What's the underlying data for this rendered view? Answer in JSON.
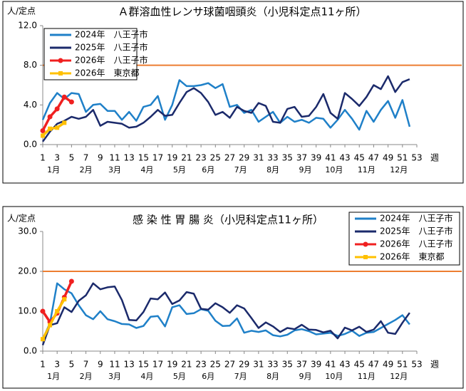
{
  "chart_data": [
    {
      "type": "line",
      "title": "Ａ群溶血性レンサ球菌咽頭炎（小児科定点11ヶ所）",
      "y_label": "人/定点",
      "x_label": "週",
      "x": [
        1,
        2,
        3,
        4,
        5,
        6,
        7,
        8,
        9,
        10,
        11,
        12,
        13,
        14,
        15,
        16,
        17,
        18,
        19,
        20,
        21,
        22,
        23,
        24,
        25,
        26,
        27,
        28,
        29,
        30,
        31,
        32,
        33,
        34,
        35,
        36,
        37,
        38,
        39,
        40,
        41,
        42,
        43,
        44,
        45,
        46,
        47,
        48,
        49,
        50,
        51,
        52
      ],
      "xlim": [
        1,
        53
      ],
      "xticks": [
        1,
        3,
        5,
        7,
        9,
        11,
        13,
        15,
        17,
        19,
        21,
        23,
        25,
        27,
        29,
        31,
        33,
        35,
        37,
        39,
        41,
        43,
        45,
        47,
        49,
        51,
        53
      ],
      "month_labels": [
        {
          "value": 2.5,
          "label": "1月"
        },
        {
          "value": 7,
          "label": "2月"
        },
        {
          "value": 11,
          "label": "3月"
        },
        {
          "value": 15.5,
          "label": "4月"
        },
        {
          "value": 20,
          "label": "5月"
        },
        {
          "value": 24,
          "label": "6月"
        },
        {
          "value": 28.5,
          "label": "7月"
        },
        {
          "value": 33,
          "label": "8月"
        },
        {
          "value": 37.5,
          "label": "9月"
        },
        {
          "value": 41.5,
          "label": "10月"
        },
        {
          "value": 46,
          "label": "11月"
        },
        {
          "value": 50.5,
          "label": "12月"
        }
      ],
      "ylim": [
        0,
        12
      ],
      "yticks": [
        {
          "value": 0,
          "label": "0.0"
        },
        {
          "value": 4,
          "label": "4.0"
        },
        {
          "value": 8,
          "label": "8.0"
        },
        {
          "value": 12,
          "label": "12.0"
        }
      ],
      "grid": false,
      "legend": "upper left",
      "reference_line": {
        "value": 8,
        "color": "#ed7d31"
      },
      "series": [
        {
          "name": "2024年　八王子市",
          "color": "#1f80c8",
          "values": [
            2.5,
            4.2,
            5.2,
            4.6,
            5.2,
            5.1,
            3.3,
            4.0,
            4.1,
            3.4,
            3.4,
            2.5,
            3.3,
            2.4,
            3.8,
            4.0,
            4.9,
            2.5,
            4.0,
            6.5,
            5.9,
            5.9,
            6.0,
            6.2,
            5.7,
            6.1,
            3.8,
            4.0,
            3.2,
            3.5,
            2.3,
            2.8,
            3.3,
            2.2,
            2.8,
            2.3,
            2.5,
            2.2,
            2.7,
            2.6,
            1.7,
            2.5,
            3.5,
            2.6,
            1.5,
            3.4,
            2.3,
            3.5,
            4.4,
            2.7,
            4.5,
            1.8
          ]
        },
        {
          "name": "2025年　八王子市",
          "color": "#1b2a6b",
          "values": [
            0.3,
            1.3,
            2.1,
            2.4,
            2.8,
            2.6,
            2.8,
            3.5,
            1.9,
            2.3,
            2.2,
            2.1,
            1.7,
            1.8,
            2.2,
            2.8,
            3.5,
            2.9,
            3.0,
            4.2,
            5.3,
            5.7,
            5.2,
            4.3,
            3.0,
            3.3,
            2.7,
            3.8,
            3.4,
            3.2,
            4.2,
            3.9,
            2.3,
            2.2,
            3.6,
            3.8,
            2.8,
            2.9,
            3.8,
            5.1,
            3.2,
            2.6,
            5.2,
            4.6,
            3.9,
            4.8,
            6.0,
            5.6,
            6.9,
            5.3,
            6.3,
            6.6
          ]
        },
        {
          "name": "2026年　八王子市",
          "color": "#f02020",
          "marker": "circle",
          "values": [
            1.4,
            2.8,
            3.6,
            4.8,
            4.3,
            null,
            null,
            null,
            null,
            null,
            null,
            null,
            null,
            null,
            null,
            null,
            null,
            null,
            null,
            null,
            null,
            null,
            null,
            null,
            null,
            null,
            null,
            null,
            null,
            null,
            null,
            null,
            null,
            null,
            null,
            null,
            null,
            null,
            null,
            null,
            null,
            null,
            null,
            null,
            null,
            null,
            null,
            null,
            null,
            null,
            null,
            null
          ]
        },
        {
          "name": "2026年　東京都",
          "color": "#ffc000",
          "marker": "square",
          "values": [
            0.9,
            1.6,
            1.7,
            2.2,
            null,
            null,
            null,
            null,
            null,
            null,
            null,
            null,
            null,
            null,
            null,
            null,
            null,
            null,
            null,
            null,
            null,
            null,
            null,
            null,
            null,
            null,
            null,
            null,
            null,
            null,
            null,
            null,
            null,
            null,
            null,
            null,
            null,
            null,
            null,
            null,
            null,
            null,
            null,
            null,
            null,
            null,
            null,
            null,
            null,
            null,
            null,
            null
          ]
        }
      ]
    },
    {
      "type": "line",
      "title": "感 染 性 胃 腸 炎（小児科定点11ヶ所）",
      "y_label": "人/定点",
      "x_label": "週",
      "x": [
        1,
        2,
        3,
        4,
        5,
        6,
        7,
        8,
        9,
        10,
        11,
        12,
        13,
        14,
        15,
        16,
        17,
        18,
        19,
        20,
        21,
        22,
        23,
        24,
        25,
        26,
        27,
        28,
        29,
        30,
        31,
        32,
        33,
        34,
        35,
        36,
        37,
        38,
        39,
        40,
        41,
        42,
        43,
        44,
        45,
        46,
        47,
        48,
        49,
        50,
        51,
        52
      ],
      "xlim": [
        1,
        53
      ],
      "xticks": [
        1,
        3,
        5,
        7,
        9,
        11,
        13,
        15,
        17,
        19,
        21,
        23,
        25,
        27,
        29,
        31,
        33,
        35,
        37,
        39,
        41,
        43,
        45,
        47,
        49,
        51,
        53
      ],
      "month_labels": [
        {
          "value": 2.5,
          "label": "1月"
        },
        {
          "value": 7,
          "label": "2月"
        },
        {
          "value": 11,
          "label": "3月"
        },
        {
          "value": 15.5,
          "label": "4月"
        },
        {
          "value": 20,
          "label": "5月"
        },
        {
          "value": 24,
          "label": "6月"
        },
        {
          "value": 28.5,
          "label": "7月"
        },
        {
          "value": 33,
          "label": "8月"
        },
        {
          "value": 37.5,
          "label": "9月"
        },
        {
          "value": 41.5,
          "label": "10月"
        },
        {
          "value": 46,
          "label": "11月"
        },
        {
          "value": 50.5,
          "label": "12月"
        }
      ],
      "ylim": [
        0,
        30
      ],
      "yticks": [
        {
          "value": 0,
          "label": "0.0"
        },
        {
          "value": 10,
          "label": "10.0"
        },
        {
          "value": 20,
          "label": "20.0"
        },
        {
          "value": 30,
          "label": "30.0"
        }
      ],
      "grid": false,
      "legend": "upper right",
      "reference_line": {
        "value": 20,
        "color": "#ed7d31"
      },
      "series": [
        {
          "name": "2024年　八王子市",
          "color": "#1f80c8",
          "values": [
            3,
            7,
            17,
            15.5,
            14.5,
            11.5,
            9,
            8,
            10,
            8,
            7.5,
            6.8,
            6.7,
            5.8,
            6.3,
            8.6,
            8.8,
            6.2,
            11,
            11.5,
            9.3,
            9.5,
            10.5,
            10.1,
            7.6,
            6.3,
            6.4,
            8.2,
            4.6,
            5.1,
            4.8,
            5.2,
            4.0,
            3.7,
            4.1,
            5.2,
            5.5,
            5.0,
            4.2,
            4.4,
            4.6,
            3.8,
            4.3,
            5.1,
            3.8,
            4.6,
            4.8,
            5.8,
            6.8,
            7.8,
            9.0,
            6.7
          ]
        },
        {
          "name": "2025年　八王子市",
          "color": "#1b2a6b",
          "values": [
            1.5,
            6.5,
            7,
            11,
            9.8,
            12.6,
            14,
            17,
            15.5,
            16,
            16.2,
            12.8,
            7.8,
            7.7,
            9.8,
            13.2,
            13,
            14.7,
            11.8,
            12.7,
            14.8,
            14.4,
            10.6,
            10.4,
            12,
            11,
            9.6,
            11.5,
            10.7,
            8.3,
            5.8,
            7.2,
            6.2,
            4.8,
            5.8,
            5.5,
            6.6,
            5.4,
            5.3,
            4.7,
            5.1,
            3.2,
            5.9,
            5.2,
            6.1,
            4.8,
            5.4,
            7.5,
            4.6,
            4.3,
            7.1,
            9.6
          ]
        },
        {
          "name": "2026年　八王子市",
          "color": "#f02020",
          "marker": "circle",
          "values": [
            10,
            7.3,
            9.5,
            13.5,
            17.5,
            null,
            null,
            null,
            null,
            null,
            null,
            null,
            null,
            null,
            null,
            null,
            null,
            null,
            null,
            null,
            null,
            null,
            null,
            null,
            null,
            null,
            null,
            null,
            null,
            null,
            null,
            null,
            null,
            null,
            null,
            null,
            null,
            null,
            null,
            null,
            null,
            null,
            null,
            null,
            null,
            null,
            null,
            null,
            null,
            null,
            null,
            null
          ]
        },
        {
          "name": "2026年　東京都",
          "color": "#ffc000",
          "marker": "square",
          "values": [
            3,
            6.5,
            10,
            13,
            null,
            null,
            null,
            null,
            null,
            null,
            null,
            null,
            null,
            null,
            null,
            null,
            null,
            null,
            null,
            null,
            null,
            null,
            null,
            null,
            null,
            null,
            null,
            null,
            null,
            null,
            null,
            null,
            null,
            null,
            null,
            null,
            null,
            null,
            null,
            null,
            null,
            null,
            null,
            null,
            null,
            null,
            null,
            null,
            null,
            null,
            null,
            null
          ]
        }
      ]
    }
  ]
}
